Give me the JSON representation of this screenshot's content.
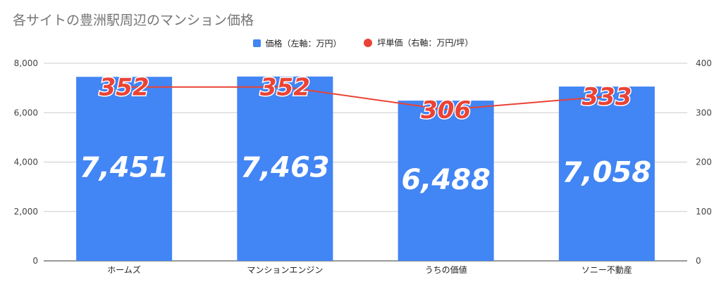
{
  "title": "各サイトの豊洲駅周辺のマンション価格",
  "legend": {
    "price": "価格（左軸：万円）",
    "unit_price": "坪単価（右軸：万円/坪）"
  },
  "colors": {
    "bar": "#4285f4",
    "line": "#ea4335"
  },
  "chart_data": {
    "type": "bar",
    "title": "各サイトの豊洲駅周辺のマンション価格",
    "categories": [
      "ホームズ",
      "マンションエンジン",
      "うちの価値",
      "ソニー不動産"
    ],
    "series": [
      {
        "name": "価格（左軸：万円）",
        "type": "bar",
        "axis": "left",
        "values": [
          7451,
          7463,
          6488,
          7058
        ],
        "labels": [
          "7,451",
          "7,463",
          "6,488",
          "7,058"
        ]
      },
      {
        "name": "坪単価（右軸：万円/坪）",
        "type": "line",
        "axis": "right",
        "values": [
          352,
          352,
          306,
          333
        ],
        "labels": [
          "352",
          "352",
          "306",
          "333"
        ]
      }
    ],
    "ylim_left": [
      0,
      8000
    ],
    "ylim_right": [
      0,
      400
    ],
    "yticks_left": [
      "0",
      "2,000",
      "4,000",
      "6,000",
      "8,000"
    ],
    "yticks_right": [
      "0",
      "100",
      "200",
      "300",
      "400"
    ],
    "grid": true,
    "legend_position": "top-center"
  }
}
